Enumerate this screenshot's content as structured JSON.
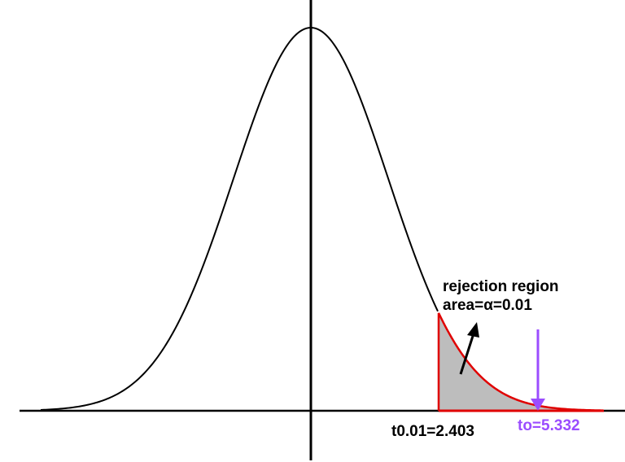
{
  "chart_data": {
    "type": "diagram",
    "title": "t-distribution right-tailed rejection region",
    "distribution": "t (bell curve)",
    "center_x_value": 0,
    "annotations": {
      "rejection_label": "rejection region",
      "area_label": "area=α=0.01",
      "critical_value_label": "t0.01=2.403",
      "test_statistic_label": "to=5.332"
    },
    "critical_value": 2.403,
    "alpha": 0.01,
    "test_statistic": 5.332,
    "colors": {
      "curve": "#000000",
      "rejection_outline": "#e00000",
      "rejection_fill": "#bdbdbd",
      "test_statistic": "#9b4dff"
    }
  },
  "labels": {
    "rejection_region": "rejection region",
    "area": "area=α=0.01",
    "critical": "t0.01=2.403",
    "observed": "to=5.332"
  }
}
